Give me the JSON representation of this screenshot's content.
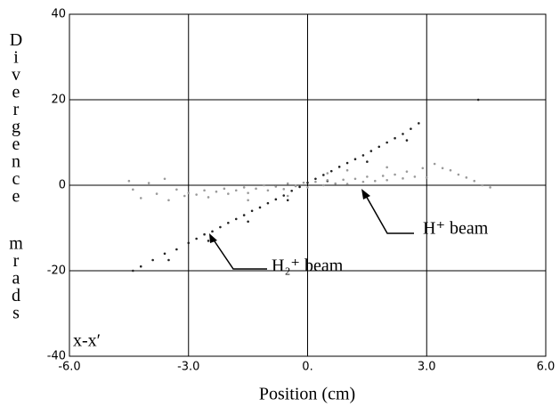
{
  "chart_data": {
    "type": "scatter",
    "xlabel": "Position (cm)",
    "ylabel": "Divergence mrads",
    "xlim": [
      -6,
      6
    ],
    "ylim": [
      -40,
      40
    ],
    "xticks": [
      {
        "value": -6,
        "label": "-6.0"
      },
      {
        "value": -3,
        "label": "-3.0"
      },
      {
        "value": 0,
        "label": "0."
      },
      {
        "value": 3,
        "label": "3.0"
      },
      {
        "value": 6,
        "label": "6.0"
      }
    ],
    "yticks": [
      -40,
      -20,
      0,
      20,
      40
    ],
    "grid": true,
    "annotations": [
      "H⁺ beam",
      "H₂⁺ beam",
      "x-x′"
    ],
    "series": [
      {
        "name": "H₂⁺ beam",
        "color": "#222222",
        "x": [
          -4.4,
          -4.2,
          -3.9,
          -3.6,
          -3.3,
          -3.0,
          -2.8,
          -2.6,
          -2.4,
          -2.2,
          -2.0,
          -1.8,
          -1.6,
          -1.4,
          -1.2,
          -1.0,
          -0.8,
          -0.6,
          -0.4,
          -0.2,
          0,
          0.2,
          0.4,
          0.6,
          0.8,
          1.0,
          1.2,
          1.4,
          1.6,
          1.8,
          2.0,
          2.2,
          2.4,
          2.6,
          2.8,
          4.3,
          -3.5,
          -2.5,
          -1.5,
          -0.5,
          0.5,
          1.5,
          2.5
        ],
        "values": [
          -20,
          -19,
          -17.5,
          -16,
          -15,
          -13.5,
          -12.5,
          -11.5,
          -10.8,
          -9.8,
          -8.8,
          -7.9,
          -7,
          -6,
          -5.2,
          -4.2,
          -3.3,
          -2.4,
          -1.3,
          -0.4,
          0.6,
          1.5,
          2.4,
          3.3,
          4.3,
          5.2,
          6.1,
          7,
          8,
          9,
          10,
          11,
          12,
          13.2,
          14.5,
          20,
          -17.5,
          -13,
          -8.5,
          -3.5,
          1,
          5.5,
          10.5
        ]
      },
      {
        "name": "H⁺ beam",
        "color": "#9a9a9a",
        "x": [
          -4.5,
          -4.4,
          -4.2,
          -4.0,
          -3.8,
          -3.6,
          -3.5,
          -3.3,
          -3.1,
          -3.0,
          -2.8,
          -2.6,
          -2.5,
          -2.3,
          -2.1,
          -2.0,
          -1.8,
          -1.6,
          -1.5,
          -1.3,
          -1.1,
          -1.0,
          -0.8,
          -0.6,
          -0.5,
          -0.3,
          -0.1,
          0,
          0.2,
          0.4,
          0.5,
          0.7,
          0.9,
          1.0,
          1.2,
          1.4,
          1.5,
          1.7,
          1.9,
          2.0,
          2.2,
          2.4,
          2.5,
          2.7,
          2.9,
          3.0,
          3.2,
          3.4,
          3.6,
          3.8,
          4.0,
          4.2,
          4.4,
          4.6,
          1.0,
          0.5,
          2.0,
          -1.5,
          -0.5
        ],
        "values": [
          1,
          -1,
          -3,
          0.5,
          -2,
          1.5,
          -3.5,
          -1,
          -2.5,
          -1.8,
          -2.2,
          -1.2,
          -2.8,
          -1.5,
          -0.8,
          -2,
          -1.2,
          -0.5,
          -1.8,
          -0.8,
          0,
          -1.2,
          -0.3,
          -0.9,
          0.4,
          -0.2,
          0.6,
          -0.5,
          0.8,
          0,
          1.2,
          0.4,
          1.3,
          0.3,
          1.5,
          0.8,
          2,
          1,
          2.2,
          1.2,
          2.5,
          1.6,
          3.2,
          2,
          4,
          1.8,
          5,
          4,
          3.5,
          2.5,
          1.8,
          1,
          0,
          -0.5,
          3.5,
          2.8,
          4.2,
          -3.5,
          -2.5
        ]
      }
    ]
  }
}
